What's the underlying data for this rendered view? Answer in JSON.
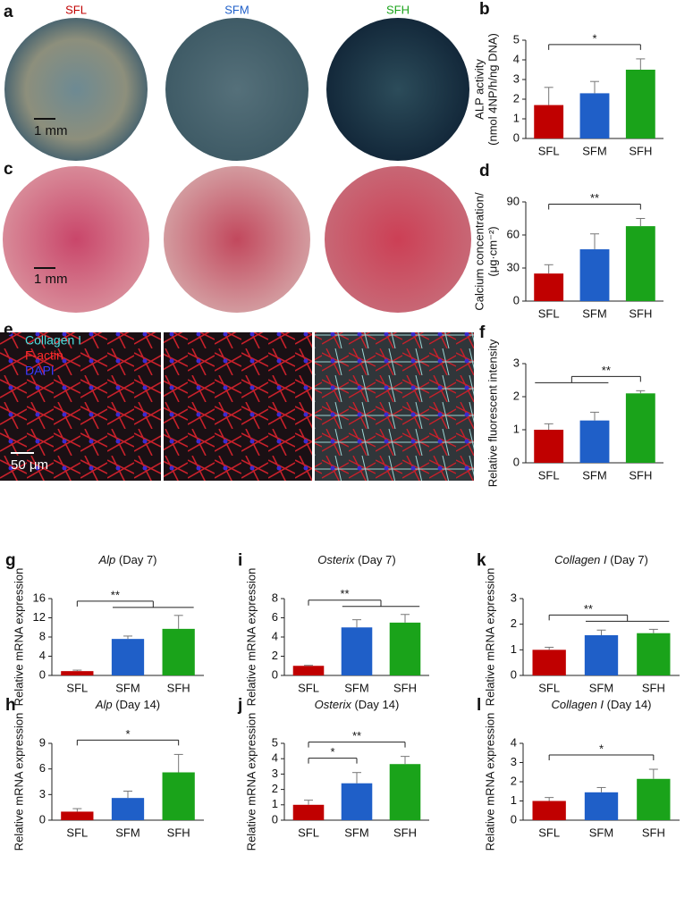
{
  "images": {
    "a": {
      "panel": "a",
      "labels": [
        "SFL",
        "SFM",
        "SFH"
      ],
      "scale": "1 mm"
    },
    "c": {
      "panel": "c",
      "scale": "1 mm"
    },
    "e": {
      "panel": "e",
      "stains": [
        "Collagen I",
        "F-actin",
        "DAPI"
      ],
      "scale": "50 μm"
    }
  },
  "chart_data": [
    {
      "panel": "b",
      "type": "bar",
      "categories": [
        "SFL",
        "SFM",
        "SFH"
      ],
      "values": [
        1.7,
        2.3,
        3.5
      ],
      "errors": [
        0.9,
        0.6,
        0.55
      ],
      "colors": [
        "#c00000",
        "#1f5fc8",
        "#1aa31a"
      ],
      "ylabel": [
        "ALP activity",
        "(nmol 4NP/h/ng DNA)"
      ],
      "ylim": [
        0,
        5
      ],
      "yticks": [
        0,
        1,
        2,
        3,
        4,
        5
      ],
      "significance": [
        {
          "label": "*",
          "left": [
            0
          ],
          "right": [
            2
          ]
        }
      ]
    },
    {
      "panel": "d",
      "type": "bar",
      "categories": [
        "SFL",
        "SFM",
        "SFH"
      ],
      "values": [
        25,
        47,
        68
      ],
      "errors": [
        8,
        14,
        7
      ],
      "colors": [
        "#c00000",
        "#1f5fc8",
        "#1aa31a"
      ],
      "ylabel": [
        "Calcium concentration/",
        "(μg·cm⁻²)"
      ],
      "ylim": [
        0,
        90
      ],
      "yticks": [
        0,
        30,
        60,
        90
      ],
      "significance": [
        {
          "label": "**",
          "left": [
            0
          ],
          "right": [
            2
          ]
        }
      ]
    },
    {
      "panel": "f",
      "type": "bar",
      "categories": [
        "SFL",
        "SFM",
        "SFH"
      ],
      "values": [
        1.0,
        1.28,
        2.1
      ],
      "errors": [
        0.18,
        0.25,
        0.08
      ],
      "colors": [
        "#c00000",
        "#1f5fc8",
        "#1aa31a"
      ],
      "ylabel": [
        "Relative fluorescent intensity"
      ],
      "ylim": [
        0,
        3
      ],
      "yticks": [
        0,
        1,
        2,
        3
      ],
      "significance": [
        {
          "label": "**",
          "left": [
            0,
            1
          ],
          "right": [
            2
          ]
        }
      ]
    },
    {
      "panel": "g",
      "type": "bar",
      "title_italic": "Alp",
      "title_rest": "(Day 7)",
      "categories": [
        "SFL",
        "SFM",
        "SFH"
      ],
      "values": [
        0.9,
        7.6,
        9.7
      ],
      "errors": [
        0.2,
        0.6,
        2.8
      ],
      "colors": [
        "#c00000",
        "#1f5fc8",
        "#1aa31a"
      ],
      "ylabel": [
        "Relative mRNA expression"
      ],
      "ylim": [
        0,
        16
      ],
      "yticks": [
        0,
        4,
        8,
        12,
        16
      ],
      "significance": [
        {
          "label": "**",
          "left": [
            0
          ],
          "right": [
            1,
            2
          ]
        }
      ]
    },
    {
      "panel": "i",
      "type": "bar",
      "title_italic": "Osterix",
      "title_rest": "(Day 7)",
      "categories": [
        "SFL",
        "SFM",
        "SFH"
      ],
      "values": [
        1.0,
        5.0,
        5.5
      ],
      "errors": [
        0.05,
        0.8,
        0.85
      ],
      "colors": [
        "#c00000",
        "#1f5fc8",
        "#1aa31a"
      ],
      "ylabel": [
        "Relative mRNA expression"
      ],
      "ylim": [
        0,
        8
      ],
      "yticks": [
        0,
        2,
        4,
        6,
        8
      ],
      "significance": [
        {
          "label": "**",
          "left": [
            0
          ],
          "right": [
            1,
            2
          ]
        }
      ]
    },
    {
      "panel": "k",
      "type": "bar",
      "title_italic": "Collagen I",
      "title_rest": "(Day 7)",
      "categories": [
        "SFL",
        "SFM",
        "SFH"
      ],
      "values": [
        1.0,
        1.57,
        1.65
      ],
      "errors": [
        0.1,
        0.2,
        0.15
      ],
      "colors": [
        "#c00000",
        "#1f5fc8",
        "#1aa31a"
      ],
      "ylabel": [
        "Relative mRNA expression"
      ],
      "ylim": [
        0,
        3
      ],
      "yticks": [
        0,
        1,
        2,
        3
      ],
      "significance": [
        {
          "label": "**",
          "left": [
            0
          ],
          "right": [
            1,
            2
          ]
        }
      ]
    },
    {
      "panel": "h",
      "type": "bar",
      "title_italic": "Alp",
      "title_rest": "(Day 14)",
      "categories": [
        "SFL",
        "SFM",
        "SFH"
      ],
      "values": [
        1.0,
        2.6,
        5.6
      ],
      "errors": [
        0.35,
        0.8,
        2.1
      ],
      "colors": [
        "#c00000",
        "#1f5fc8",
        "#1aa31a"
      ],
      "ylabel": [
        "Relative mRNA expression"
      ],
      "ylim": [
        0,
        9
      ],
      "yticks": [
        0,
        3,
        6,
        9
      ],
      "significance": [
        {
          "label": "*",
          "left": [
            0
          ],
          "right": [
            2
          ]
        }
      ]
    },
    {
      "panel": "j",
      "type": "bar",
      "title_italic": "Osterix",
      "title_rest": "(Day 14)",
      "categories": [
        "SFL",
        "SFM",
        "SFH"
      ],
      "values": [
        1.0,
        2.4,
        3.65
      ],
      "errors": [
        0.3,
        0.7,
        0.5
      ],
      "colors": [
        "#c00000",
        "#1f5fc8",
        "#1aa31a"
      ],
      "ylabel": [
        "Relative mRNA expression"
      ],
      "ylim": [
        0,
        5
      ],
      "yticks": [
        0,
        1,
        2,
        3,
        4,
        5
      ],
      "significance": [
        {
          "label": "**",
          "left": [
            0
          ],
          "right": [
            2
          ]
        },
        {
          "label": "*",
          "left": [
            0
          ],
          "right": [
            1
          ]
        }
      ]
    },
    {
      "panel": "l",
      "type": "bar",
      "title_italic": "Collagen I",
      "title_rest": "(Day 14)",
      "categories": [
        "SFL",
        "SFM",
        "SFH"
      ],
      "values": [
        1.0,
        1.45,
        2.15
      ],
      "errors": [
        0.18,
        0.25,
        0.5
      ],
      "colors": [
        "#c00000",
        "#1f5fc8",
        "#1aa31a"
      ],
      "ylabel": [
        "Relative mRNA expression"
      ],
      "ylim": [
        0,
        4
      ],
      "yticks": [
        0,
        1,
        2,
        3,
        4
      ],
      "significance": [
        {
          "label": "*",
          "left": [
            0
          ],
          "right": [
            2
          ]
        }
      ]
    }
  ]
}
